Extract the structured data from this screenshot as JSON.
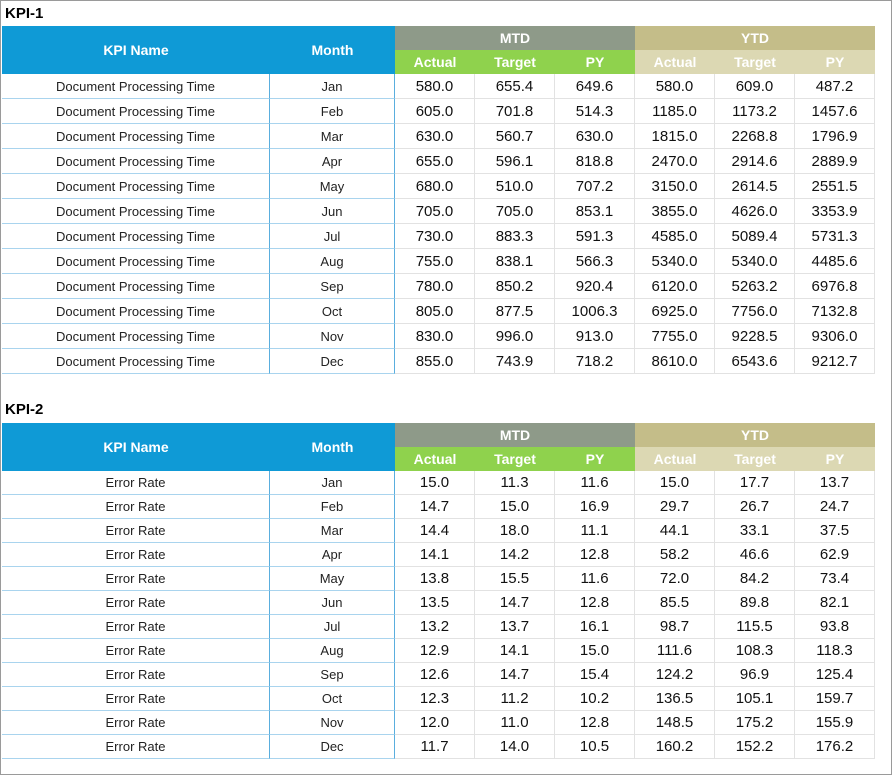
{
  "tables": [
    {
      "title": "KPI-1",
      "header": {
        "kpi_name": "KPI Name",
        "month": "Month",
        "mtd": "MTD",
        "ytd": "YTD",
        "mtd_cols": [
          "Actual",
          "Target",
          "PY"
        ],
        "ytd_cols": [
          "Actual",
          "Target",
          "PY"
        ]
      },
      "rows": [
        [
          "Document Processing Time",
          "Jan",
          "580.0",
          "655.4",
          "649.6",
          "580.0",
          "609.0",
          "487.2"
        ],
        [
          "Document Processing Time",
          "Feb",
          "605.0",
          "701.8",
          "514.3",
          "1185.0",
          "1173.2",
          "1457.6"
        ],
        [
          "Document Processing Time",
          "Mar",
          "630.0",
          "560.7",
          "630.0",
          "1815.0",
          "2268.8",
          "1796.9"
        ],
        [
          "Document Processing Time",
          "Apr",
          "655.0",
          "596.1",
          "818.8",
          "2470.0",
          "2914.6",
          "2889.9"
        ],
        [
          "Document Processing Time",
          "May",
          "680.0",
          "510.0",
          "707.2",
          "3150.0",
          "2614.5",
          "2551.5"
        ],
        [
          "Document Processing Time",
          "Jun",
          "705.0",
          "705.0",
          "853.1",
          "3855.0",
          "4626.0",
          "3353.9"
        ],
        [
          "Document Processing Time",
          "Jul",
          "730.0",
          "883.3",
          "591.3",
          "4585.0",
          "5089.4",
          "5731.3"
        ],
        [
          "Document Processing Time",
          "Aug",
          "755.0",
          "838.1",
          "566.3",
          "5340.0",
          "5340.0",
          "4485.6"
        ],
        [
          "Document Processing Time",
          "Sep",
          "780.0",
          "850.2",
          "920.4",
          "6120.0",
          "5263.2",
          "6976.8"
        ],
        [
          "Document Processing Time",
          "Oct",
          "805.0",
          "877.5",
          "1006.3",
          "6925.0",
          "7756.0",
          "7132.8"
        ],
        [
          "Document Processing Time",
          "Nov",
          "830.0",
          "996.0",
          "913.0",
          "7755.0",
          "9228.5",
          "9306.0"
        ],
        [
          "Document Processing Time",
          "Dec",
          "855.0",
          "743.9",
          "718.2",
          "8610.0",
          "6543.6",
          "9212.7"
        ]
      ]
    },
    {
      "title": "KPI-2",
      "header": {
        "kpi_name": "KPI Name",
        "month": "Month",
        "mtd": "MTD",
        "ytd": "YTD",
        "mtd_cols": [
          "Actual",
          "Target",
          "PY"
        ],
        "ytd_cols": [
          "Actual",
          "Target",
          "PY"
        ]
      },
      "rows": [
        [
          "Error Rate",
          "Jan",
          "15.0",
          "11.3",
          "11.6",
          "15.0",
          "17.7",
          "13.7"
        ],
        [
          "Error Rate",
          "Feb",
          "14.7",
          "15.0",
          "16.9",
          "29.7",
          "26.7",
          "24.7"
        ],
        [
          "Error Rate",
          "Mar",
          "14.4",
          "18.0",
          "11.1",
          "44.1",
          "33.1",
          "37.5"
        ],
        [
          "Error Rate",
          "Apr",
          "14.1",
          "14.2",
          "12.8",
          "58.2",
          "46.6",
          "62.9"
        ],
        [
          "Error Rate",
          "May",
          "13.8",
          "15.5",
          "11.6",
          "72.0",
          "84.2",
          "73.4"
        ],
        [
          "Error Rate",
          "Jun",
          "13.5",
          "14.7",
          "12.8",
          "85.5",
          "89.8",
          "82.1"
        ],
        [
          "Error Rate",
          "Jul",
          "13.2",
          "13.7",
          "16.1",
          "98.7",
          "115.5",
          "93.8"
        ],
        [
          "Error Rate",
          "Aug",
          "12.9",
          "14.1",
          "15.0",
          "111.6",
          "108.3",
          "118.3"
        ],
        [
          "Error Rate",
          "Sep",
          "12.6",
          "14.7",
          "15.4",
          "124.2",
          "96.9",
          "125.4"
        ],
        [
          "Error Rate",
          "Oct",
          "12.3",
          "11.2",
          "10.2",
          "136.5",
          "105.1",
          "159.7"
        ],
        [
          "Error Rate",
          "Nov",
          "12.0",
          "11.0",
          "12.8",
          "148.5",
          "175.2",
          "155.9"
        ],
        [
          "Error Rate",
          "Dec",
          "11.7",
          "14.0",
          "10.5",
          "160.2",
          "152.2",
          "176.2"
        ]
      ]
    }
  ]
}
